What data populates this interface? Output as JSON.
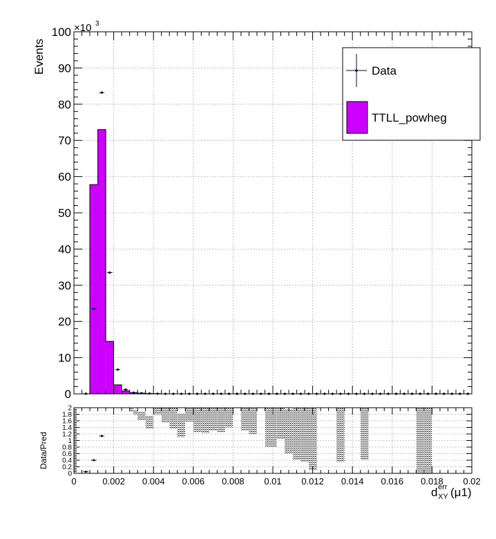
{
  "chart_data": [
    {
      "type": "bar",
      "panel": "main",
      "ylabel": "Events",
      "y_exponent_label": "×10",
      "y_exponent_power": "3",
      "xlim": [
        0,
        0.02
      ],
      "ylim": [
        0,
        100
      ],
      "y_units": "thousands of events",
      "y_ticks": [
        "0",
        "10",
        "20",
        "30",
        "40",
        "50",
        "60",
        "70",
        "80",
        "90",
        "100"
      ],
      "grid": true,
      "bin_width": 0.0004,
      "series": [
        {
          "name": "TTLL_powheg",
          "kind": "filled histogram",
          "color": "#cc00ff",
          "bin_edges_start": 0.0008,
          "values": [
            57.8,
            73.0,
            14.5,
            2.5,
            0.8,
            0.35,
            0.2,
            0.1,
            0.05
          ]
        },
        {
          "name": "Data",
          "kind": "points with error bars",
          "color": "#000000",
          "error_bar_color": "#00008b",
          "points": [
            {
              "x": 0.0006,
              "y": 0.05
            },
            {
              "x": 0.001,
              "y": 23.5
            },
            {
              "x": 0.0014,
              "y": 83.2
            },
            {
              "x": 0.0018,
              "y": 33.5
            },
            {
              "x": 0.0022,
              "y": 6.7
            },
            {
              "x": 0.0026,
              "y": 1.2
            },
            {
              "x": 0.003,
              "y": 0.35
            },
            {
              "x": 0.0034,
              "y": 0.2
            },
            {
              "x": 0.0038,
              "y": 0.12
            },
            {
              "x": 0.0042,
              "y": 0.06
            }
          ]
        }
      ],
      "legend": {
        "position": "top-right",
        "entries": [
          "Data",
          "TTLL_powheg"
        ]
      }
    },
    {
      "type": "scatter",
      "panel": "ratio",
      "ylabel": "Data/Pred",
      "xlabel_main": "d",
      "xlabel_sub": "XY",
      "xlabel_sup": "err",
      "xlabel_suffix": "(μ1)",
      "xlim": [
        0,
        0.02
      ],
      "ylim": [
        0,
        2
      ],
      "x_ticks": [
        "0",
        "0.002",
        "0.004",
        "0.006",
        "0.008",
        "0.01",
        "0.012",
        "0.014",
        "0.016",
        "0.018",
        "0.02"
      ],
      "y_ticks": [
        "0",
        "0.2",
        "0.4",
        "0.6",
        "0.8",
        "1",
        "1.2",
        "1.4",
        "1.6",
        "1.8",
        "2"
      ],
      "grid": true,
      "ratio_points": [
        {
          "x": 0.0006,
          "y": 0.05
        },
        {
          "x": 0.001,
          "y": 0.4
        },
        {
          "x": 0.0014,
          "y": 1.14
        }
      ],
      "uncertainty_bands": [
        {
          "x0": 0.0028,
          "x1": 0.003,
          "y0": 1.88,
          "y1": 2.0
        },
        {
          "x0": 0.003,
          "x1": 0.0032,
          "y0": 1.78,
          "y1": 1.92
        },
        {
          "x0": 0.0032,
          "x1": 0.0036,
          "y0": 1.62,
          "y1": 1.88
        },
        {
          "x0": 0.0036,
          "x1": 0.004,
          "y0": 1.35,
          "y1": 1.75
        },
        {
          "x0": 0.004,
          "x1": 0.0044,
          "y0": 1.78,
          "y1": 2.0
        },
        {
          "x0": 0.0044,
          "x1": 0.0048,
          "y0": 1.55,
          "y1": 2.0
        },
        {
          "x0": 0.0048,
          "x1": 0.0052,
          "y0": 1.35,
          "y1": 2.0
        },
        {
          "x0": 0.0052,
          "x1": 0.0056,
          "y0": 1.1,
          "y1": 1.82
        },
        {
          "x0": 0.0056,
          "x1": 0.006,
          "y0": 1.58,
          "y1": 2.0
        },
        {
          "x0": 0.006,
          "x1": 0.0064,
          "y0": 1.25,
          "y1": 2.0
        },
        {
          "x0": 0.0064,
          "x1": 0.0068,
          "y0": 1.22,
          "y1": 2.0
        },
        {
          "x0": 0.0068,
          "x1": 0.0072,
          "y0": 1.3,
          "y1": 2.0
        },
        {
          "x0": 0.0072,
          "x1": 0.0076,
          "y0": 1.25,
          "y1": 2.0
        },
        {
          "x0": 0.0076,
          "x1": 0.008,
          "y0": 1.4,
          "y1": 2.0
        },
        {
          "x0": 0.0084,
          "x1": 0.0088,
          "y0": 1.3,
          "y1": 2.0
        },
        {
          "x0": 0.0088,
          "x1": 0.0092,
          "y0": 1.2,
          "y1": 2.0
        },
        {
          "x0": 0.0096,
          "x1": 0.0102,
          "y0": 0.8,
          "y1": 2.0
        },
        {
          "x0": 0.0102,
          "x1": 0.0106,
          "y0": 1.05,
          "y1": 2.0
        },
        {
          "x0": 0.0106,
          "x1": 0.011,
          "y0": 0.6,
          "y1": 1.95
        },
        {
          "x0": 0.011,
          "x1": 0.0114,
          "y0": 0.4,
          "y1": 2.0
        },
        {
          "x0": 0.0114,
          "x1": 0.0118,
          "y0": 0.35,
          "y1": 2.0
        },
        {
          "x0": 0.0118,
          "x1": 0.0122,
          "y0": 0.1,
          "y1": 2.0
        },
        {
          "x0": 0.0132,
          "x1": 0.0136,
          "y0": 0.35,
          "y1": 2.0
        },
        {
          "x0": 0.0144,
          "x1": 0.0148,
          "y0": 0.4,
          "y1": 2.0
        },
        {
          "x0": 0.0172,
          "x1": 0.0176,
          "y0": 0.0,
          "y1": 2.0
        },
        {
          "x0": 0.0176,
          "x1": 0.018,
          "y0": 0.0,
          "y1": 2.0
        }
      ]
    }
  ]
}
